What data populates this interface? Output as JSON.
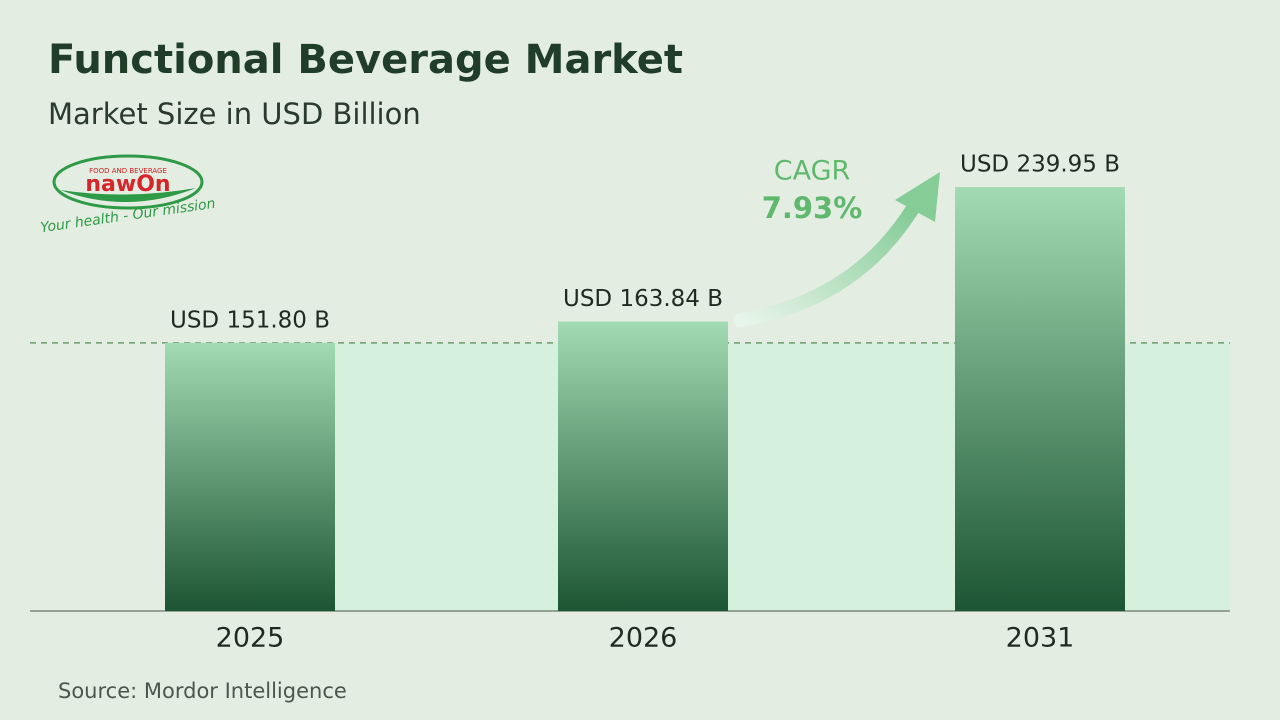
{
  "chart_data": {
    "type": "bar",
    "title": "Functional Beverage Market",
    "subtitle": "Market Size in USD Billion",
    "categories": [
      "2025",
      "2026",
      "2031"
    ],
    "values": [
      151.8,
      163.84,
      239.95
    ],
    "value_labels": [
      "USD 151.80 B",
      "USD 163.84 B",
      "USD 239.95 B"
    ],
    "ylim": [
      0,
      300
    ],
    "reference_line": true,
    "annotation": {
      "label": "CAGR",
      "text": "7.93%"
    },
    "source": "Source:  Mordor Intelligence"
  },
  "logo": {
    "caption": "FOOD AND BEVERAGE",
    "name": "nawOn",
    "tagline": "Your health - Our mission"
  }
}
